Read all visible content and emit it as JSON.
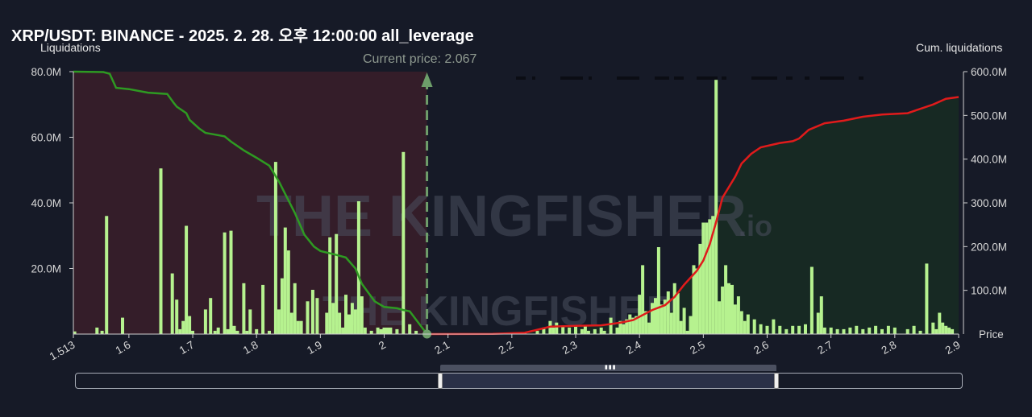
{
  "title": "XRP/USDT: BINANCE - 2025. 2. 28. 오후 12:00:00 all_leverage",
  "axis_left_name": "Liquidations",
  "axis_right_name": "Cum. liquidations",
  "axis_x_name": "Price",
  "current_price_label": "Current price: 2.067",
  "watermark": "THE KINGFISHER",
  "watermark_suffix": ".io",
  "colors": {
    "background": "#161a27",
    "bar": "#b6f28f",
    "short_cum_line": "#2e9a22",
    "long_cum_line": "#e01b1b",
    "left_fill": "#3a1f2a",
    "right_fill": "#172a23",
    "current_price": "#6e9e6a"
  },
  "chart_data": {
    "type": "bar",
    "current_price": 2.067,
    "xlim": [
      1.513,
      2.9
    ],
    "ylim_left": [
      0,
      80000000
    ],
    "ylim_right": [
      0,
      600000000
    ],
    "x_ticks": [
      "1.513",
      "1.6",
      "1.7",
      "1.8",
      "1.9",
      "2",
      "2.1",
      "2.2",
      "2.3",
      "2.4",
      "2.5",
      "2.6",
      "2.7",
      "2.8",
      "2.9"
    ],
    "y_left_ticks": [
      "80.0M",
      "60.0M",
      "40.0M",
      "20.0M"
    ],
    "y_right_ticks": [
      "600.0M",
      "500.0M",
      "400.0M",
      "300.0M",
      "200.0M",
      "100.0M"
    ],
    "bars": [
      [
        1.515,
        0.8
      ],
      [
        1.55,
        2
      ],
      [
        1.558,
        1
      ],
      [
        1.565,
        36
      ],
      [
        1.59,
        5
      ],
      [
        1.65,
        50.5
      ],
      [
        1.668,
        18.5
      ],
      [
        1.675,
        10.5
      ],
      [
        1.68,
        1.5
      ],
      [
        1.685,
        4
      ],
      [
        1.69,
        33
      ],
      [
        1.695,
        5.5
      ],
      [
        1.7,
        1
      ],
      [
        1.72,
        7.5
      ],
      [
        1.728,
        11
      ],
      [
        1.735,
        1
      ],
      [
        1.74,
        2
      ],
      [
        1.75,
        31
      ],
      [
        1.755,
        1.5
      ],
      [
        1.76,
        31.5
      ],
      [
        1.765,
        2.5
      ],
      [
        1.77,
        1
      ],
      [
        1.78,
        15.5
      ],
      [
        1.785,
        1
      ],
      [
        1.79,
        7.5
      ],
      [
        1.8,
        1.5
      ],
      [
        1.81,
        15
      ],
      [
        1.82,
        1
      ],
      [
        1.83,
        52.5
      ],
      [
        1.835,
        7.5
      ],
      [
        1.84,
        17
      ],
      [
        1.845,
        32.5
      ],
      [
        1.85,
        25.5
      ],
      [
        1.855,
        6.5
      ],
      [
        1.86,
        15.5
      ],
      [
        1.865,
        4
      ],
      [
        1.87,
        4
      ],
      [
        1.88,
        10
      ],
      [
        1.888,
        13.5
      ],
      [
        1.895,
        11
      ],
      [
        1.91,
        6.5
      ],
      [
        1.915,
        29.5
      ],
      [
        1.92,
        9.5
      ],
      [
        1.925,
        30.5
      ],
      [
        1.93,
        6.5
      ],
      [
        1.935,
        2
      ],
      [
        1.94,
        12
      ],
      [
        1.945,
        6
      ],
      [
        1.95,
        9.5
      ],
      [
        1.955,
        7.5
      ],
      [
        1.96,
        40.5
      ],
      [
        1.965,
        11.5
      ],
      [
        1.97,
        2
      ],
      [
        1.98,
        1
      ],
      [
        1.99,
        2
      ],
      [
        1.995,
        1.5
      ],
      [
        2.0,
        2
      ],
      [
        2.005,
        2
      ],
      [
        2.01,
        2
      ],
      [
        2.02,
        1.5
      ],
      [
        2.03,
        55.5
      ],
      [
        2.04,
        3
      ],
      [
        2.05,
        1
      ],
      [
        2.18,
        0.3
      ],
      [
        2.22,
        0.5
      ],
      [
        2.24,
        1
      ],
      [
        2.25,
        2
      ],
      [
        2.26,
        4
      ],
      [
        2.265,
        2
      ],
      [
        2.27,
        3.5
      ],
      [
        2.28,
        2.5
      ],
      [
        2.29,
        2
      ],
      [
        2.3,
        2.5
      ],
      [
        2.31,
        1.5
      ],
      [
        2.315,
        2.5
      ],
      [
        2.32,
        1
      ],
      [
        2.33,
        1.5
      ],
      [
        2.34,
        2
      ],
      [
        2.345,
        1
      ],
      [
        2.355,
        5
      ],
      [
        2.365,
        2
      ],
      [
        2.37,
        4
      ],
      [
        2.375,
        3
      ],
      [
        2.38,
        4.5
      ],
      [
        2.385,
        6
      ],
      [
        2.39,
        5
      ],
      [
        2.395,
        5.5
      ],
      [
        2.4,
        12
      ],
      [
        2.405,
        21
      ],
      [
        2.41,
        7
      ],
      [
        2.415,
        3.5
      ],
      [
        2.42,
        9.5
      ],
      [
        2.425,
        11
      ],
      [
        2.43,
        26.5
      ],
      [
        2.435,
        9
      ],
      [
        2.44,
        10.5
      ],
      [
        2.445,
        13
      ],
      [
        2.45,
        6.5
      ],
      [
        2.455,
        15.5
      ],
      [
        2.46,
        12.5
      ],
      [
        2.465,
        4
      ],
      [
        2.47,
        8
      ],
      [
        2.475,
        1
      ],
      [
        2.48,
        5.5
      ],
      [
        2.485,
        21
      ],
      [
        2.49,
        20
      ],
      [
        2.495,
        27.5
      ],
      [
        2.5,
        34
      ],
      [
        2.505,
        34
      ],
      [
        2.51,
        35
      ],
      [
        2.515,
        36
      ],
      [
        2.52,
        77.5
      ],
      [
        2.525,
        10
      ],
      [
        2.53,
        14.5
      ],
      [
        2.535,
        21
      ],
      [
        2.54,
        15.5
      ],
      [
        2.545,
        15
      ],
      [
        2.55,
        9
      ],
      [
        2.555,
        11.5
      ],
      [
        2.56,
        7
      ],
      [
        2.565,
        4
      ],
      [
        2.57,
        6
      ],
      [
        2.58,
        4.5
      ],
      [
        2.59,
        3
      ],
      [
        2.6,
        2.5
      ],
      [
        2.61,
        4.5
      ],
      [
        2.62,
        2.5
      ],
      [
        2.63,
        1.5
      ],
      [
        2.64,
        2.5
      ],
      [
        2.65,
        2.5
      ],
      [
        2.66,
        3
      ],
      [
        2.67,
        20.5
      ],
      [
        2.68,
        6.5
      ],
      [
        2.685,
        11.5
      ],
      [
        2.69,
        2
      ],
      [
        2.7,
        2
      ],
      [
        2.71,
        1.5
      ],
      [
        2.72,
        1.5
      ],
      [
        2.73,
        2
      ],
      [
        2.74,
        2.5
      ],
      [
        2.75,
        1.5
      ],
      [
        2.76,
        2
      ],
      [
        2.77,
        2.5
      ],
      [
        2.78,
        1.5
      ],
      [
        2.79,
        2.5
      ],
      [
        2.8,
        2
      ],
      [
        2.82,
        1.5
      ],
      [
        2.83,
        2.5
      ],
      [
        2.84,
        1
      ],
      [
        2.85,
        21.5
      ],
      [
        2.86,
        3.5
      ],
      [
        2.865,
        1.5
      ],
      [
        2.87,
        6.5
      ],
      [
        2.875,
        3.5
      ],
      [
        2.88,
        2.5
      ],
      [
        2.885,
        2
      ],
      [
        2.89,
        1.5
      ]
    ],
    "short_cum": [
      [
        1.513,
        600
      ],
      [
        1.56,
        599
      ],
      [
        1.57,
        595
      ],
      [
        1.58,
        563
      ],
      [
        1.6,
        560
      ],
      [
        1.63,
        552
      ],
      [
        1.66,
        549
      ],
      [
        1.67,
        529
      ],
      [
        1.675,
        520
      ],
      [
        1.69,
        505
      ],
      [
        1.695,
        490
      ],
      [
        1.71,
        470
      ],
      [
        1.72,
        460
      ],
      [
        1.735,
        456
      ],
      [
        1.75,
        452
      ],
      [
        1.76,
        440
      ],
      [
        1.78,
        420
      ],
      [
        1.8,
        403
      ],
      [
        1.82,
        385
      ],
      [
        1.835,
        349
      ],
      [
        1.845,
        320
      ],
      [
        1.86,
        277
      ],
      [
        1.875,
        227
      ],
      [
        1.89,
        200
      ],
      [
        1.9,
        190
      ],
      [
        1.92,
        183
      ],
      [
        1.94,
        175
      ],
      [
        1.955,
        150
      ],
      [
        1.965,
        115
      ],
      [
        1.975,
        95
      ],
      [
        1.985,
        75
      ],
      [
        2.0,
        62
      ],
      [
        2.02,
        59
      ],
      [
        2.03,
        55
      ],
      [
        2.04,
        52
      ],
      [
        2.067,
        0
      ]
    ],
    "long_cum": [
      [
        2.067,
        0
      ],
      [
        2.17,
        0.5
      ],
      [
        2.22,
        3
      ],
      [
        2.24,
        10
      ],
      [
        2.26,
        17
      ],
      [
        2.3,
        19
      ],
      [
        2.34,
        20
      ],
      [
        2.37,
        26
      ],
      [
        2.39,
        32
      ],
      [
        2.42,
        55
      ],
      [
        2.44,
        66
      ],
      [
        2.455,
        85
      ],
      [
        2.47,
        113
      ],
      [
        2.49,
        145
      ],
      [
        2.5,
        168
      ],
      [
        2.51,
        205
      ],
      [
        2.52,
        256
      ],
      [
        2.53,
        312
      ],
      [
        2.55,
        360
      ],
      [
        2.56,
        390
      ],
      [
        2.575,
        412
      ],
      [
        2.59,
        427
      ],
      [
        2.62,
        437
      ],
      [
        2.64,
        441
      ],
      [
        2.65,
        447
      ],
      [
        2.665,
        467
      ],
      [
        2.69,
        482
      ],
      [
        2.72,
        488
      ],
      [
        2.75,
        497
      ],
      [
        2.78,
        502
      ],
      [
        2.82,
        505
      ],
      [
        2.86,
        525
      ],
      [
        2.88,
        538
      ],
      [
        2.9,
        542
      ]
    ]
  }
}
